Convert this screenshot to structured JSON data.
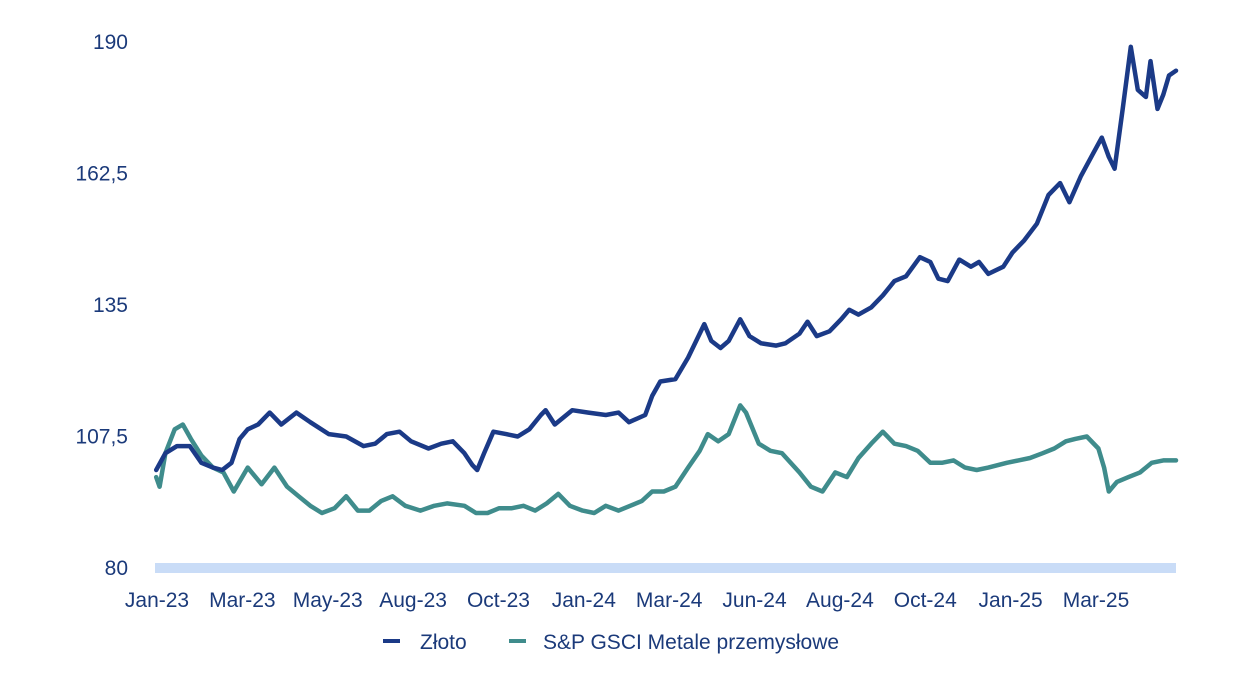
{
  "chart_data": {
    "type": "line",
    "title": "",
    "xlabel": "",
    "ylabel": "",
    "ylim": [
      80,
      190
    ],
    "y_ticks": [
      "80",
      "107,5",
      "135",
      "162,5",
      "190"
    ],
    "y_tick_values": [
      80,
      107.5,
      135,
      162.5,
      190
    ],
    "x_ticks": [
      "Jan-23",
      "Mar-23",
      "May-23",
      "Aug-23",
      "Oct-23",
      "Jan-24",
      "Mar-24",
      "Jun-24",
      "Aug-24",
      "Oct-24",
      "Jan-25",
      "Mar-25"
    ],
    "x_range": [
      "2023-01-01",
      "2025-05-31"
    ],
    "grid": false,
    "legend_position": "bottom",
    "series": [
      {
        "name": "Złoto",
        "color": "#1b3a87",
        "points": [
          [
            "2023-01-02",
            100.5
          ],
          [
            "2023-01-10",
            104
          ],
          [
            "2023-01-20",
            105.5
          ],
          [
            "2023-01-31",
            105.5
          ],
          [
            "2023-02-10",
            102
          ],
          [
            "2023-02-20",
            101
          ],
          [
            "2023-02-28",
            100.5
          ],
          [
            "2023-03-08",
            102
          ],
          [
            "2023-03-15",
            107
          ],
          [
            "2023-03-22",
            109
          ],
          [
            "2023-03-31",
            110
          ],
          [
            "2023-04-10",
            112.5
          ],
          [
            "2023-04-20",
            110
          ],
          [
            "2023-05-03",
            112.5
          ],
          [
            "2023-05-15",
            110.5
          ],
          [
            "2023-05-31",
            108
          ],
          [
            "2023-06-15",
            107.5
          ],
          [
            "2023-06-30",
            105.5
          ],
          [
            "2023-07-10",
            106
          ],
          [
            "2023-07-20",
            108
          ],
          [
            "2023-07-31",
            108.5
          ],
          [
            "2023-08-10",
            106.5
          ],
          [
            "2023-08-25",
            105
          ],
          [
            "2023-09-05",
            106
          ],
          [
            "2023-09-15",
            106.5
          ],
          [
            "2023-09-25",
            104
          ],
          [
            "2023-10-02",
            101.5
          ],
          [
            "2023-10-06",
            100.5
          ],
          [
            "2023-10-12",
            104
          ],
          [
            "2023-10-20",
            108.5
          ],
          [
            "2023-10-31",
            108
          ],
          [
            "2023-11-10",
            107.5
          ],
          [
            "2023-11-20",
            109
          ],
          [
            "2023-11-30",
            112
          ],
          [
            "2023-12-04",
            113
          ],
          [
            "2023-12-12",
            110
          ],
          [
            "2023-12-27",
            113
          ],
          [
            "2024-01-10",
            112.5
          ],
          [
            "2024-01-25",
            112
          ],
          [
            "2024-02-05",
            112.5
          ],
          [
            "2024-02-14",
            110.5
          ],
          [
            "2024-02-28",
            112
          ],
          [
            "2024-03-05",
            116
          ],
          [
            "2024-03-12",
            119
          ],
          [
            "2024-03-25",
            119.5
          ],
          [
            "2024-04-05",
            124
          ],
          [
            "2024-04-12",
            127.5
          ],
          [
            "2024-04-19",
            131
          ],
          [
            "2024-04-25",
            127.5
          ],
          [
            "2024-05-03",
            126
          ],
          [
            "2024-05-10",
            127.5
          ],
          [
            "2024-05-20",
            132
          ],
          [
            "2024-05-28",
            128.5
          ],
          [
            "2024-06-07",
            127
          ],
          [
            "2024-06-20",
            126.5
          ],
          [
            "2024-06-28",
            127
          ],
          [
            "2024-07-10",
            129
          ],
          [
            "2024-07-17",
            131.5
          ],
          [
            "2024-07-25",
            128.5
          ],
          [
            "2024-08-05",
            129.5
          ],
          [
            "2024-08-15",
            132
          ],
          [
            "2024-08-22",
            134
          ],
          [
            "2024-08-30",
            133
          ],
          [
            "2024-09-10",
            134.5
          ],
          [
            "2024-09-20",
            137
          ],
          [
            "2024-09-30",
            140
          ],
          [
            "2024-10-10",
            141
          ],
          [
            "2024-10-22",
            145
          ],
          [
            "2024-10-31",
            144
          ],
          [
            "2024-11-07",
            140.5
          ],
          [
            "2024-11-15",
            140
          ],
          [
            "2024-11-25",
            144.5
          ],
          [
            "2024-12-05",
            143
          ],
          [
            "2024-12-12",
            144
          ],
          [
            "2024-12-20",
            141.5
          ],
          [
            "2025-01-02",
            143
          ],
          [
            "2025-01-10",
            146
          ],
          [
            "2025-01-20",
            148.5
          ],
          [
            "2025-01-31",
            152
          ],
          [
            "2025-02-10",
            158
          ],
          [
            "2025-02-20",
            160.5
          ],
          [
            "2025-02-28",
            156.5
          ],
          [
            "2025-03-10",
            162
          ],
          [
            "2025-03-20",
            166.5
          ],
          [
            "2025-03-28",
            170
          ],
          [
            "2025-04-03",
            166
          ],
          [
            "2025-04-08",
            163.5
          ],
          [
            "2025-04-15",
            176
          ],
          [
            "2025-04-22",
            189
          ],
          [
            "2025-04-28",
            180
          ],
          [
            "2025-05-05",
            178.5
          ],
          [
            "2025-05-09",
            186
          ],
          [
            "2025-05-15",
            176
          ],
          [
            "2025-05-20",
            179
          ],
          [
            "2025-05-25",
            183
          ],
          [
            "2025-05-31",
            184
          ]
        ]
      },
      {
        "name": "S&P GSCI Metale przemysłowe",
        "color": "#3f8c8c",
        "points": [
          [
            "2023-01-02",
            99
          ],
          [
            "2023-01-05",
            97
          ],
          [
            "2023-01-10",
            104
          ],
          [
            "2023-01-18",
            109
          ],
          [
            "2023-01-25",
            110
          ],
          [
            "2023-02-01",
            107
          ],
          [
            "2023-02-10",
            103.5
          ],
          [
            "2023-02-20",
            101
          ],
          [
            "2023-03-01",
            100
          ],
          [
            "2023-03-10",
            96
          ],
          [
            "2023-03-22",
            101
          ],
          [
            "2023-04-03",
            97.5
          ],
          [
            "2023-04-14",
            101
          ],
          [
            "2023-04-25",
            97
          ],
          [
            "2023-05-05",
            95
          ],
          [
            "2023-05-15",
            93
          ],
          [
            "2023-05-25",
            91.5
          ],
          [
            "2023-06-05",
            92.5
          ],
          [
            "2023-06-15",
            95
          ],
          [
            "2023-06-25",
            92
          ],
          [
            "2023-07-05",
            92
          ],
          [
            "2023-07-15",
            94
          ],
          [
            "2023-07-25",
            95
          ],
          [
            "2023-08-05",
            93
          ],
          [
            "2023-08-18",
            92
          ],
          [
            "2023-08-30",
            93
          ],
          [
            "2023-09-10",
            93.5
          ],
          [
            "2023-09-25",
            93
          ],
          [
            "2023-10-05",
            91.5
          ],
          [
            "2023-10-15",
            91.5
          ],
          [
            "2023-10-25",
            92.5
          ],
          [
            "2023-11-05",
            92.5
          ],
          [
            "2023-11-15",
            93
          ],
          [
            "2023-11-25",
            92
          ],
          [
            "2023-12-05",
            93.5
          ],
          [
            "2023-12-15",
            95.5
          ],
          [
            "2023-12-25",
            93
          ],
          [
            "2024-01-05",
            92
          ],
          [
            "2024-01-15",
            91.5
          ],
          [
            "2024-01-25",
            93
          ],
          [
            "2024-02-05",
            92
          ],
          [
            "2024-02-15",
            93
          ],
          [
            "2024-02-25",
            94
          ],
          [
            "2024-03-05",
            96
          ],
          [
            "2024-03-15",
            96
          ],
          [
            "2024-03-25",
            97
          ],
          [
            "2024-04-05",
            101
          ],
          [
            "2024-04-15",
            104.5
          ],
          [
            "2024-04-22",
            108
          ],
          [
            "2024-05-01",
            106.5
          ],
          [
            "2024-05-10",
            108
          ],
          [
            "2024-05-20",
            114
          ],
          [
            "2024-05-25",
            112.5
          ],
          [
            "2024-06-05",
            106
          ],
          [
            "2024-06-15",
            104.5
          ],
          [
            "2024-06-25",
            104
          ],
          [
            "2024-07-10",
            100
          ],
          [
            "2024-07-20",
            97
          ],
          [
            "2024-07-30",
            96
          ],
          [
            "2024-08-10",
            100
          ],
          [
            "2024-08-20",
            99
          ],
          [
            "2024-08-30",
            103
          ],
          [
            "2024-09-10",
            106
          ],
          [
            "2024-09-20",
            108.5
          ],
          [
            "2024-09-30",
            106
          ],
          [
            "2024-10-10",
            105.5
          ],
          [
            "2024-10-20",
            104.5
          ],
          [
            "2024-10-31",
            102
          ],
          [
            "2024-11-10",
            102
          ],
          [
            "2024-11-20",
            102.5
          ],
          [
            "2024-11-30",
            101
          ],
          [
            "2024-12-10",
            100.5
          ],
          [
            "2024-12-20",
            101
          ],
          [
            "2025-01-05",
            102
          ],
          [
            "2025-01-15",
            102.5
          ],
          [
            "2025-01-25",
            103
          ],
          [
            "2025-02-05",
            104
          ],
          [
            "2025-02-15",
            105
          ],
          [
            "2025-02-25",
            106.5
          ],
          [
            "2025-03-05",
            107
          ],
          [
            "2025-03-15",
            107.5
          ],
          [
            "2025-03-25",
            105
          ],
          [
            "2025-03-30",
            101
          ],
          [
            "2025-04-03",
            96
          ],
          [
            "2025-04-10",
            98
          ],
          [
            "2025-04-20",
            99
          ],
          [
            "2025-04-30",
            100
          ],
          [
            "2025-05-10",
            102
          ],
          [
            "2025-05-20",
            102.5
          ],
          [
            "2025-05-31",
            102.5
          ]
        ]
      }
    ]
  }
}
